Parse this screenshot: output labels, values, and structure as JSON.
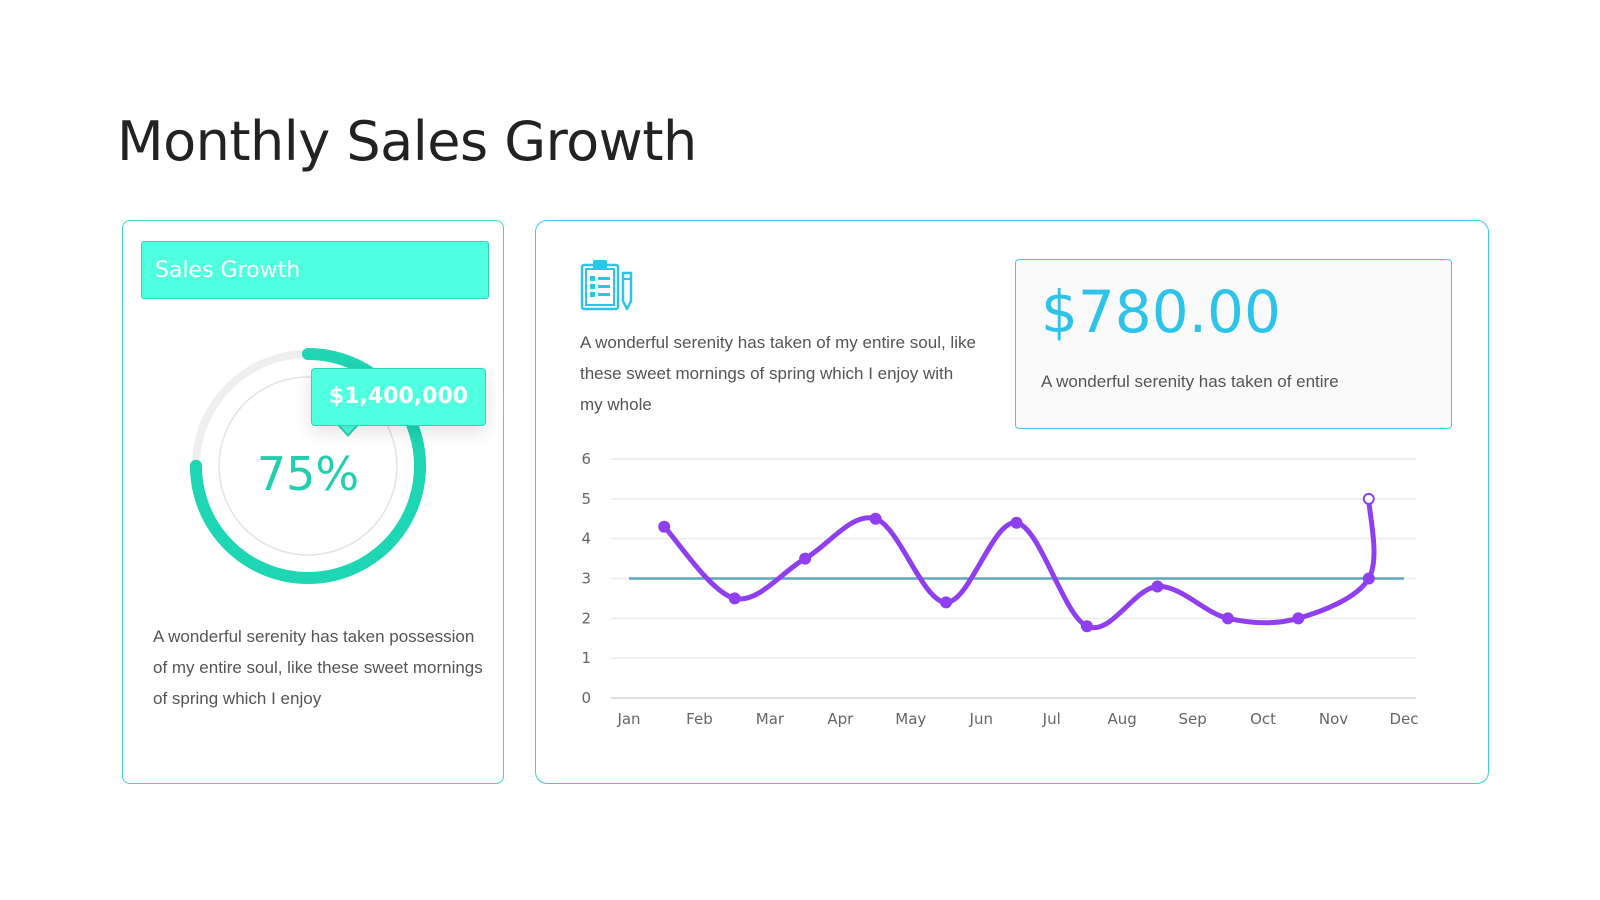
{
  "page": {
    "title": "Monthly Sales Growth"
  },
  "left_card": {
    "header": "Sales Growth",
    "tooltip_value": "$1,400,000",
    "percent_label": "75%",
    "progress": 0.75,
    "description": "A wonderful serenity has taken possession of my entire soul, like these sweet mornings of spring which I enjoy"
  },
  "right_card": {
    "icon": "clipboard-icon",
    "description": "A wonderful serenity has taken of my entire soul, like these sweet mornings of spring which I enjoy with my whole",
    "value_box": {
      "amount": "$780.00",
      "description": "A wonderful serenity has taken of entire"
    }
  },
  "colors": {
    "teal_accent": "#1fd6b4",
    "teal_fill": "#50ffe0",
    "cyan_accent": "#2ec4ea",
    "line_series": "#8f3ff0",
    "reference_line": "#5aa8bf"
  },
  "chart_data": {
    "type": "line",
    "categories": [
      "Jan",
      "Feb",
      "Mar",
      "Apr",
      "May",
      "Jun",
      "Jul",
      "Aug",
      "Sep",
      "Oct",
      "Nov",
      "Dec"
    ],
    "series": [
      {
        "name": "",
        "points": [
          [
            0.5,
            4.3
          ],
          [
            1.5,
            2.5
          ],
          [
            2.5,
            3.5
          ],
          [
            3.5,
            4.5
          ],
          [
            4.5,
            2.4
          ],
          [
            5.5,
            4.4
          ],
          [
            6.5,
            1.8
          ],
          [
            7.5,
            2.8
          ],
          [
            8.5,
            2.0
          ],
          [
            9.5,
            2.0
          ],
          [
            10.5,
            3.0
          ],
          [
            10.5,
            5.0
          ]
        ]
      },
      {
        "name": "",
        "points": [
          [
            0,
            3
          ],
          [
            11,
            3
          ]
        ]
      }
    ],
    "title": "",
    "xlabel": "",
    "ylabel": "",
    "ylim": [
      0,
      6
    ],
    "yticks": [
      "0",
      "1",
      "2",
      "3",
      "4",
      "5",
      "6"
    ],
    "grid": true,
    "legend": "none"
  }
}
